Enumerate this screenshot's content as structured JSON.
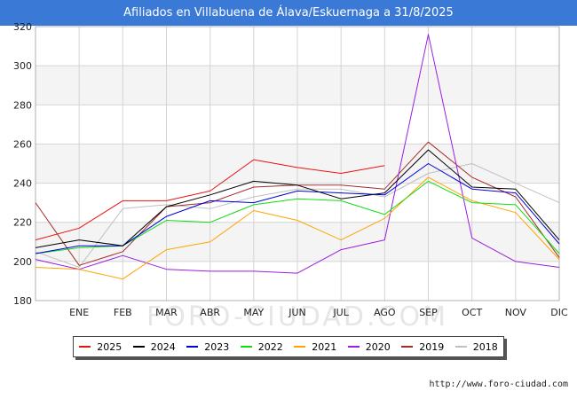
{
  "title": "Afiliados en Villabuena de Álava/Eskuernaga a 31/8/2025",
  "source": "http://www.foro-ciudad.com",
  "watermark": "FORO-CIUDAD.COM",
  "chart_data": {
    "type": "line",
    "categories": [
      "",
      "ENE",
      "FEB",
      "MAR",
      "ABR",
      "MAY",
      "JUN",
      "JUL",
      "AGO",
      "SEP",
      "OCT",
      "NOV",
      "DIC"
    ],
    "ylim": [
      180,
      320
    ],
    "yticks": [
      180,
      200,
      220,
      240,
      260,
      280,
      300,
      320
    ],
    "grid": true,
    "legend_position": "bottom",
    "series": [
      {
        "name": "2025",
        "color": "#ee1111",
        "values": [
          211,
          217,
          231,
          231,
          236,
          252,
          248,
          245,
          249,
          null,
          null,
          null,
          null
        ]
      },
      {
        "name": "2024",
        "color": "#000000",
        "values": [
          207,
          211,
          208,
          228,
          234,
          241,
          239,
          232,
          235,
          257,
          238,
          237,
          211
        ]
      },
      {
        "name": "2023",
        "color": "#0000dd",
        "values": [
          204,
          208,
          208,
          223,
          231,
          230,
          236,
          235,
          234,
          250,
          237,
          235,
          209
        ]
      },
      {
        "name": "2022",
        "color": "#11dd11",
        "values": [
          204,
          207,
          208,
          221,
          220,
          229,
          232,
          231,
          224,
          241,
          230,
          229,
          204
        ]
      },
      {
        "name": "2021",
        "color": "#ffa500",
        "values": [
          197,
          196,
          191,
          206,
          210,
          226,
          221,
          211,
          222,
          243,
          231,
          225,
          201
        ]
      },
      {
        "name": "2020",
        "color": "#9a1ee0",
        "values": [
          201,
          196,
          203,
          196,
          195,
          195,
          194,
          206,
          211,
          316,
          212,
          200,
          197
        ]
      },
      {
        "name": "2019",
        "color": "#a52a2a",
        "values": [
          230,
          198,
          205,
          228,
          230,
          238,
          239,
          239,
          237,
          261,
          243,
          233,
          202
        ]
      },
      {
        "name": "2018",
        "color": "#c0c0c0",
        "values": [
          205,
          197,
          227,
          229,
          227,
          233,
          237,
          237,
          233,
          245,
          250,
          240,
          230
        ]
      }
    ]
  }
}
